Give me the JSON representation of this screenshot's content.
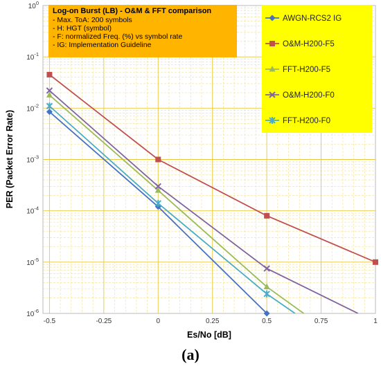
{
  "caption": "(a)",
  "chart_data": {
    "type": "line",
    "ylabel": "PER (Packet Error Rate)",
    "xlabel": "Es/No [dB]",
    "yscale": "log",
    "xlim": [
      -0.53,
      1.0
    ],
    "ylim": [
      1e-06,
      1
    ],
    "grid": true,
    "x_ticks": [
      "-0.5",
      "-0.25",
      "0",
      "0.25",
      "0.5",
      "0.75",
      "1"
    ],
    "y_ticks": [
      {
        "value": 1,
        "mantissa": "10",
        "exp": "0"
      },
      {
        "value": 0.1,
        "mantissa": "10",
        "exp": "-1"
      },
      {
        "value": 0.01,
        "mantissa": "10",
        "exp": "-2"
      },
      {
        "value": 0.001,
        "mantissa": "10",
        "exp": "-3"
      },
      {
        "value": 0.0001,
        "mantissa": "10",
        "exp": "-4"
      },
      {
        "value": 1e-05,
        "mantissa": "10",
        "exp": "-5"
      },
      {
        "value": 1e-06,
        "mantissa": "10",
        "exp": "-6"
      }
    ],
    "info_box": {
      "title": "Log-on Burst (LB) - O&M & FFT comparison",
      "lines": [
        "- Max. ToA: 200 symbols",
        "- H: HGT (symbol)",
        "- F: normalized Freq. (%) vs symbol rate",
        "- IG: Implementation Guideline"
      ],
      "color": "#ffb400"
    },
    "legend_color": "#ffff00",
    "legend_placement": "top-right",
    "series": [
      {
        "name": "AWGN-RCS2 IG",
        "color": "#4472c4",
        "marker": "diamond",
        "x": [
          -0.5,
          0,
          0.5
        ],
        "y": [
          0.0085,
          0.00012,
          1e-06
        ],
        "extend_to": null
      },
      {
        "name": "O&M-H200-F5",
        "color": "#c0504d",
        "marker": "square",
        "x": [
          -0.5,
          0,
          0.5,
          1.0
        ],
        "y": [
          0.045,
          0.001,
          8e-05,
          1e-05
        ],
        "extend_to": null
      },
      {
        "name": "FFT-H200-F5",
        "color": "#9bbb59",
        "marker": "triangle",
        "x": [
          -0.5,
          0,
          0.5
        ],
        "y": [
          0.018,
          0.00025,
          3.3e-06
        ],
        "extend_to": [
          0.67,
          1e-06
        ]
      },
      {
        "name": "O&M-H200-F0",
        "color": "#8064a2",
        "marker": "x",
        "x": [
          -0.5,
          0,
          0.5
        ],
        "y": [
          0.022,
          0.0003,
          7.5e-06
        ],
        "extend_to": [
          0.92,
          1e-06
        ]
      },
      {
        "name": "FFT-H200-F0",
        "color": "#4bacc6",
        "marker": "star",
        "x": [
          -0.5,
          0,
          0.5
        ],
        "y": [
          0.011,
          0.00014,
          2.4e-06
        ],
        "extend_to": [
          0.63,
          1e-06
        ]
      }
    ]
  }
}
